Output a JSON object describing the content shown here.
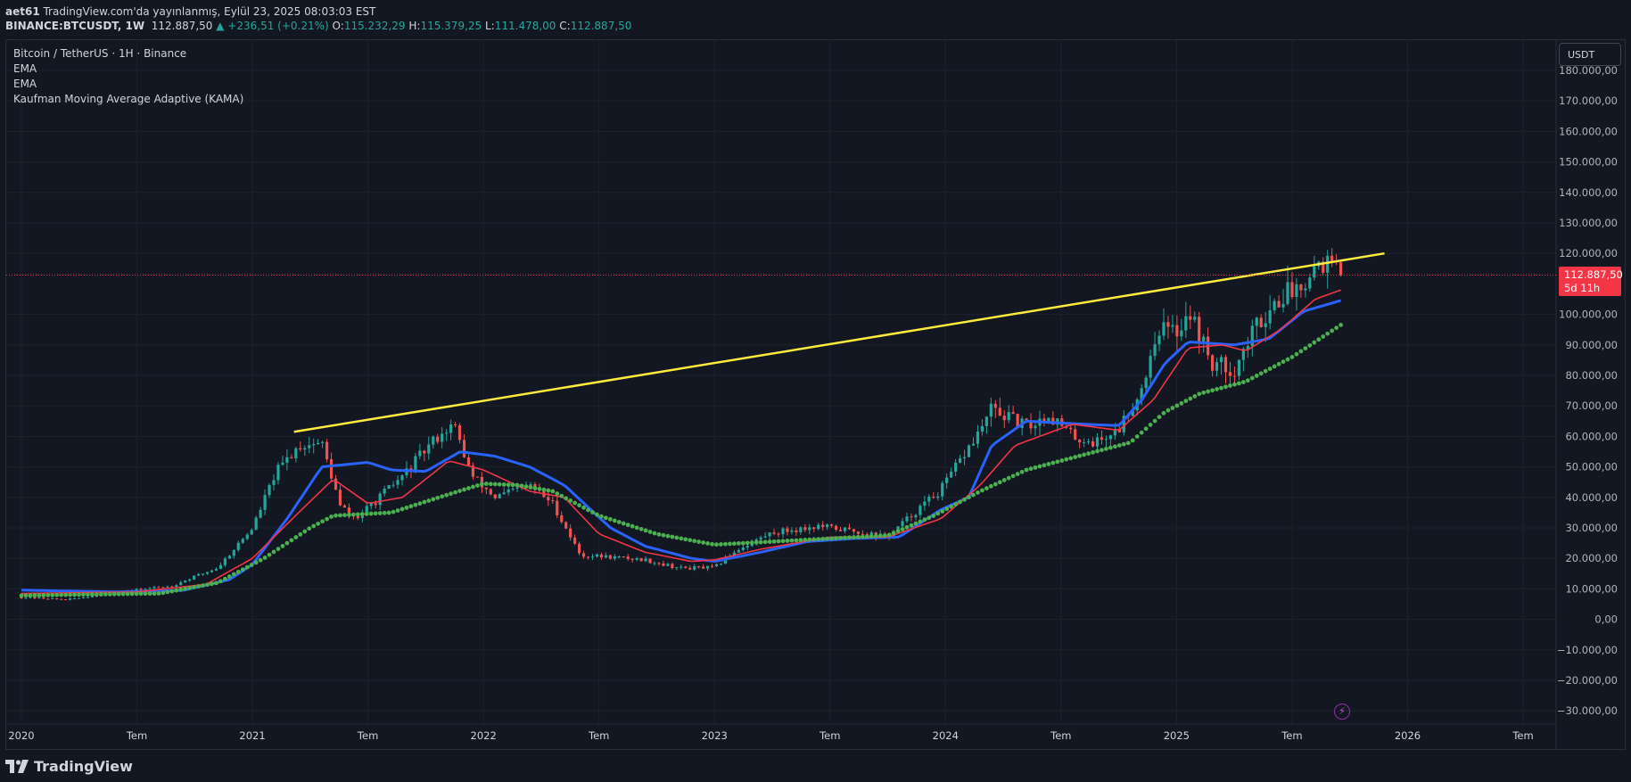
{
  "header": {
    "publisher_line": "aet61 TradingView.com'da yayınlanmış, Eylül 23, 2025 08:03:03 EST",
    "publisher_user": "aet61",
    "publisher_rest": " TradingView.com'da yayınlanmış, Eylül 23, 2025 08:03:03 EST",
    "symbol": "BINANCE:BTCUSDT, 1W",
    "last": "112.887,50",
    "change": "▲ +236,51 (+0.21%)",
    "o_label": "O:",
    "o_value": "115.232,29",
    "h_label": "H:",
    "h_value": "115.379,25",
    "l_label": "L:",
    "l_value": "111.478,00",
    "c_label": "C:",
    "c_value": "112.887,50"
  },
  "legend": {
    "title": "Bitcoin / TetherUS · 1H · Binance",
    "ind1": "EMA",
    "ind2": "EMA",
    "ind3": "Kaufman Moving Average Adaptive (KAMA)"
  },
  "currency_button": "USDT",
  "price_tag": {
    "price": "112.887,50",
    "countdown": "5d 11h"
  },
  "footer": {
    "logo_text": "TradingView"
  },
  "colors": {
    "up": "#26a69a",
    "down": "#ef5350",
    "ema_fast": "#f23645",
    "ema_slow": "#2962ff",
    "kama": "#4caf50",
    "trendline": "#ffeb3b",
    "price_line": "#f23645"
  },
  "chart_data": {
    "type": "candlestick",
    "title": "Bitcoin / TetherUS · 1H · Binance",
    "ylim": [
      -35000,
      185000
    ],
    "y_ticks": [
      {
        "v": 180000,
        "label": "180.000,00"
      },
      {
        "v": 170000,
        "label": "170.000,00"
      },
      {
        "v": 160000,
        "label": "160.000,00"
      },
      {
        "v": 150000,
        "label": "150.000,00"
      },
      {
        "v": 140000,
        "label": "140.000,00"
      },
      {
        "v": 130000,
        "label": "130.000,00"
      },
      {
        "v": 120000,
        "label": "120.000,00"
      },
      {
        "v": 100000,
        "label": "100.000,00"
      },
      {
        "v": 90000,
        "label": "90.000,00"
      },
      {
        "v": 80000,
        "label": "80.000,00"
      },
      {
        "v": 70000,
        "label": "70.000,00"
      },
      {
        "v": 60000,
        "label": "60.000,00"
      },
      {
        "v": 50000,
        "label": "50.000,00"
      },
      {
        "v": 40000,
        "label": "40.000,00"
      },
      {
        "v": 30000,
        "label": "30.000,00"
      },
      {
        "v": 20000,
        "label": "20.000,00"
      },
      {
        "v": 10000,
        "label": "10.000,00"
      },
      {
        "v": 0,
        "label": "0,00"
      },
      {
        "v": -10000,
        "label": "−10.000,00"
      },
      {
        "v": -20000,
        "label": "−20.000,00"
      },
      {
        "v": -30000,
        "label": "−30.000,00"
      }
    ],
    "x_range": [
      2020.0,
      2026.75
    ],
    "x_ticks": [
      {
        "t": 2020.0,
        "label": "2020"
      },
      {
        "t": 2020.5,
        "label": "Tem"
      },
      {
        "t": 2021.0,
        "label": "2021"
      },
      {
        "t": 2021.5,
        "label": "Tem"
      },
      {
        "t": 2022.0,
        "label": "2022"
      },
      {
        "t": 2022.5,
        "label": "Tem"
      },
      {
        "t": 2023.0,
        "label": "2023"
      },
      {
        "t": 2023.5,
        "label": "Tem"
      },
      {
        "t": 2024.0,
        "label": "2024"
      },
      {
        "t": 2024.5,
        "label": "Tem"
      },
      {
        "t": 2025.0,
        "label": "2025"
      },
      {
        "t": 2025.5,
        "label": "Tem"
      },
      {
        "t": 2026.0,
        "label": "2026"
      },
      {
        "t": 2026.5,
        "label": "Tem"
      }
    ],
    "last_price": 112887.5,
    "price_anchors": [
      [
        2020.0,
        7200
      ],
      [
        2020.2,
        6500
      ],
      [
        2020.45,
        9300
      ],
      [
        2020.65,
        11000
      ],
      [
        2020.85,
        17000
      ],
      [
        2021.0,
        30000
      ],
      [
        2021.1,
        48000
      ],
      [
        2021.2,
        57000
      ],
      [
        2021.3,
        58000
      ],
      [
        2021.38,
        37000
      ],
      [
        2021.45,
        33000
      ],
      [
        2021.55,
        40000
      ],
      [
        2021.65,
        47000
      ],
      [
        2021.8,
        60000
      ],
      [
        2021.87,
        64000
      ],
      [
        2021.95,
        47000
      ],
      [
        2022.05,
        40000
      ],
      [
        2022.2,
        44000
      ],
      [
        2022.3,
        38000
      ],
      [
        2022.42,
        21000
      ],
      [
        2022.55,
        20500
      ],
      [
        2022.7,
        19500
      ],
      [
        2022.85,
        16800
      ],
      [
        2023.0,
        17000
      ],
      [
        2023.1,
        23000
      ],
      [
        2023.25,
        28500
      ],
      [
        2023.45,
        30500
      ],
      [
        2023.6,
        29000
      ],
      [
        2023.75,
        27000
      ],
      [
        2023.85,
        34000
      ],
      [
        2023.98,
        42500
      ],
      [
        2024.15,
        62000
      ],
      [
        2024.2,
        69000
      ],
      [
        2024.35,
        63000
      ],
      [
        2024.45,
        67000
      ],
      [
        2024.55,
        60000
      ],
      [
        2024.65,
        58000
      ],
      [
        2024.75,
        62500
      ],
      [
        2024.85,
        76000
      ],
      [
        2024.92,
        96000
      ],
      [
        2025.0,
        94000
      ],
      [
        2025.05,
        102000
      ],
      [
        2025.15,
        84000
      ],
      [
        2025.25,
        82000
      ],
      [
        2025.35,
        97000
      ],
      [
        2025.45,
        106000
      ],
      [
        2025.52,
        109000
      ],
      [
        2025.62,
        118000
      ],
      [
        2025.7,
        115000
      ],
      [
        2025.73,
        112887.5
      ]
    ],
    "ema_fast_anchors": [
      [
        2020.0,
        8500
      ],
      [
        2020.5,
        9000
      ],
      [
        2020.8,
        11500
      ],
      [
        2021.0,
        20000
      ],
      [
        2021.2,
        35000
      ],
      [
        2021.35,
        46000
      ],
      [
        2021.5,
        38000
      ],
      [
        2021.65,
        40000
      ],
      [
        2021.85,
        52000
      ],
      [
        2022.0,
        49000
      ],
      [
        2022.2,
        42000
      ],
      [
        2022.35,
        40000
      ],
      [
        2022.5,
        28000
      ],
      [
        2022.7,
        22000
      ],
      [
        2022.9,
        19000
      ],
      [
        2023.0,
        19500
      ],
      [
        2023.2,
        23000
      ],
      [
        2023.5,
        27000
      ],
      [
        2023.75,
        27000
      ],
      [
        2023.98,
        33000
      ],
      [
        2024.15,
        44000
      ],
      [
        2024.3,
        57000
      ],
      [
        2024.55,
        64000
      ],
      [
        2024.75,
        62000
      ],
      [
        2024.9,
        72000
      ],
      [
        2025.05,
        89000
      ],
      [
        2025.2,
        90000
      ],
      [
        2025.3,
        88000
      ],
      [
        2025.45,
        95000
      ],
      [
        2025.6,
        105000
      ],
      [
        2025.73,
        108500
      ]
    ],
    "ema_slow_anchors": [
      [
        2020.0,
        9600
      ],
      [
        2020.4,
        9000
      ],
      [
        2020.7,
        9500
      ],
      [
        2020.9,
        13000
      ],
      [
        2021.0,
        18000
      ],
      [
        2021.15,
        33000
      ],
      [
        2021.3,
        50000
      ],
      [
        2021.5,
        51500
      ],
      [
        2021.6,
        49000
      ],
      [
        2021.75,
        48500
      ],
      [
        2021.9,
        55000
      ],
      [
        2022.05,
        53500
      ],
      [
        2022.2,
        50000
      ],
      [
        2022.35,
        44000
      ],
      [
        2022.55,
        30000
      ],
      [
        2022.7,
        24000
      ],
      [
        2022.9,
        20000
      ],
      [
        2023.0,
        19000
      ],
      [
        2023.2,
        22000
      ],
      [
        2023.4,
        25500
      ],
      [
        2023.6,
        26500
      ],
      [
        2023.8,
        27000
      ],
      [
        2023.98,
        36000
      ],
      [
        2024.1,
        40000
      ],
      [
        2024.2,
        57000
      ],
      [
        2024.35,
        65000
      ],
      [
        2024.6,
        64000
      ],
      [
        2024.75,
        63500
      ],
      [
        2024.85,
        72000
      ],
      [
        2024.95,
        84000
      ],
      [
        2025.05,
        91000
      ],
      [
        2025.25,
        90000
      ],
      [
        2025.4,
        92000
      ],
      [
        2025.55,
        101000
      ],
      [
        2025.73,
        105000
      ]
    ],
    "kama_anchors": [
      [
        2020.0,
        7800
      ],
      [
        2020.6,
        8500
      ],
      [
        2020.85,
        12000
      ],
      [
        2021.05,
        20000
      ],
      [
        2021.25,
        30000
      ],
      [
        2021.35,
        34000
      ],
      [
        2021.6,
        35000
      ],
      [
        2021.85,
        41000
      ],
      [
        2022.0,
        44500
      ],
      [
        2022.15,
        44000
      ],
      [
        2022.3,
        42000
      ],
      [
        2022.5,
        34000
      ],
      [
        2022.75,
        28000
      ],
      [
        2023.0,
        24500
      ],
      [
        2023.25,
        25500
      ],
      [
        2023.5,
        26500
      ],
      [
        2023.75,
        27500
      ],
      [
        2023.95,
        34000
      ],
      [
        2024.15,
        42000
      ],
      [
        2024.35,
        49000
      ],
      [
        2024.55,
        53000
      ],
      [
        2024.8,
        58000
      ],
      [
        2024.95,
        68000
      ],
      [
        2025.1,
        74000
      ],
      [
        2025.3,
        78000
      ],
      [
        2025.5,
        86000
      ],
      [
        2025.73,
        97500
      ]
    ],
    "trendline": [
      [
        2021.18,
        61500
      ],
      [
        2025.9,
        120000
      ]
    ]
  }
}
